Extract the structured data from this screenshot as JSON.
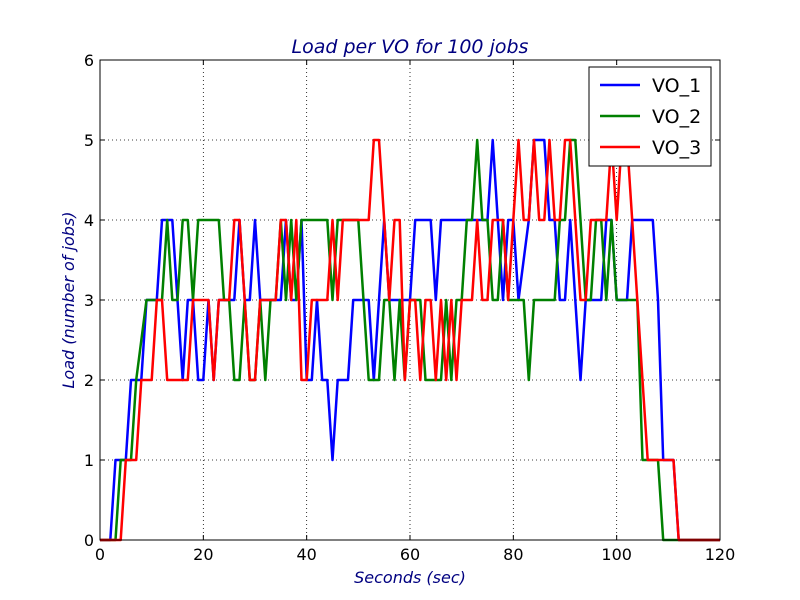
{
  "chart_data": {
    "type": "line",
    "title": "Load per VO for 100 jobs",
    "xlabel": "Seconds (sec)",
    "ylabel": "Load (number of jobs)",
    "xlim": [
      0,
      120
    ],
    "ylim": [
      0,
      6
    ],
    "xticks": [
      "0",
      "20",
      "40",
      "60",
      "80",
      "100",
      "120"
    ],
    "yticks": [
      "0",
      "1",
      "2",
      "3",
      "4",
      "5",
      "6"
    ],
    "grid": true,
    "legend_position": "top-right",
    "series": [
      {
        "name": "VO_1",
        "color": "#0000ff",
        "points": [
          [
            0,
            0
          ],
          [
            2,
            0
          ],
          [
            3,
            1
          ],
          [
            5,
            1
          ],
          [
            6,
            2
          ],
          [
            8,
            2
          ],
          [
            9,
            3
          ],
          [
            11,
            3
          ],
          [
            12,
            4
          ],
          [
            14,
            4
          ],
          [
            15,
            3
          ],
          [
            16,
            2
          ],
          [
            17,
            3
          ],
          [
            18,
            3
          ],
          [
            19,
            2
          ],
          [
            20,
            2
          ],
          [
            21,
            3
          ],
          [
            22,
            2
          ],
          [
            23,
            3
          ],
          [
            26,
            3
          ],
          [
            27,
            4
          ],
          [
            28,
            3
          ],
          [
            29,
            3
          ],
          [
            30,
            4
          ],
          [
            31,
            3
          ],
          [
            35,
            3
          ],
          [
            36,
            4
          ],
          [
            37,
            3
          ],
          [
            38,
            3
          ],
          [
            39,
            4
          ],
          [
            40,
            2
          ],
          [
            41,
            2
          ],
          [
            42,
            3
          ],
          [
            43,
            2
          ],
          [
            44,
            2
          ],
          [
            45,
            1
          ],
          [
            46,
            2
          ],
          [
            48,
            2
          ],
          [
            49,
            3
          ],
          [
            52,
            3
          ],
          [
            53,
            2
          ],
          [
            54,
            3
          ],
          [
            55,
            4
          ],
          [
            56,
            3
          ],
          [
            60,
            3
          ],
          [
            61,
            4
          ],
          [
            64,
            4
          ],
          [
            65,
            3
          ],
          [
            66,
            4
          ],
          [
            75,
            4
          ],
          [
            76,
            5
          ],
          [
            77,
            4
          ],
          [
            78,
            3
          ],
          [
            79,
            4
          ],
          [
            80,
            4
          ],
          [
            81,
            3
          ],
          [
            83,
            4
          ],
          [
            84,
            5
          ],
          [
            86,
            5
          ],
          [
            87,
            4
          ],
          [
            88,
            4
          ],
          [
            89,
            3
          ],
          [
            90,
            3
          ],
          [
            91,
            4
          ],
          [
            92,
            3
          ],
          [
            93,
            2
          ],
          [
            94,
            3
          ],
          [
            97,
            3
          ],
          [
            98,
            4
          ],
          [
            99,
            4
          ],
          [
            100,
            3
          ],
          [
            102,
            3
          ],
          [
            103,
            4
          ],
          [
            107,
            4
          ],
          [
            108,
            3
          ],
          [
            109,
            1
          ],
          [
            110,
            1
          ],
          [
            111,
            1
          ],
          [
            112,
            0
          ],
          [
            120,
            0
          ]
        ]
      },
      {
        "name": "VO_2",
        "color": "#008000",
        "points": [
          [
            0,
            0
          ],
          [
            3,
            0
          ],
          [
            4,
            1
          ],
          [
            6,
            1
          ],
          [
            7,
            2
          ],
          [
            9,
            3
          ],
          [
            12,
            3
          ],
          [
            13,
            4
          ],
          [
            14,
            3
          ],
          [
            15,
            3
          ],
          [
            16,
            4
          ],
          [
            17,
            4
          ],
          [
            18,
            3
          ],
          [
            19,
            4
          ],
          [
            23,
            4
          ],
          [
            24,
            3
          ],
          [
            25,
            3
          ],
          [
            26,
            2
          ],
          [
            27,
            2
          ],
          [
            28,
            3
          ],
          [
            29,
            2
          ],
          [
            30,
            2
          ],
          [
            31,
            3
          ],
          [
            32,
            2
          ],
          [
            33,
            3
          ],
          [
            34,
            3
          ],
          [
            35,
            4
          ],
          [
            36,
            3
          ],
          [
            37,
            4
          ],
          [
            38,
            3
          ],
          [
            39,
            4
          ],
          [
            44,
            4
          ],
          [
            45,
            3
          ],
          [
            46,
            4
          ],
          [
            50,
            4
          ],
          [
            51,
            3
          ],
          [
            52,
            2
          ],
          [
            54,
            2
          ],
          [
            55,
            3
          ],
          [
            56,
            3
          ],
          [
            57,
            2
          ],
          [
            58,
            3
          ],
          [
            59,
            2
          ],
          [
            60,
            3
          ],
          [
            62,
            3
          ],
          [
            63,
            2
          ],
          [
            66,
            2
          ],
          [
            67,
            3
          ],
          [
            68,
            2
          ],
          [
            69,
            3
          ],
          [
            70,
            3
          ],
          [
            71,
            4
          ],
          [
            72,
            4
          ],
          [
            73,
            5
          ],
          [
            74,
            4
          ],
          [
            75,
            4
          ],
          [
            76,
            3
          ],
          [
            77,
            3
          ],
          [
            78,
            4
          ],
          [
            79,
            3
          ],
          [
            82,
            3
          ],
          [
            83,
            2
          ],
          [
            84,
            3
          ],
          [
            88,
            3
          ],
          [
            89,
            4
          ],
          [
            90,
            4
          ],
          [
            91,
            5
          ],
          [
            92,
            5
          ],
          [
            93,
            4
          ],
          [
            94,
            3
          ],
          [
            95,
            3
          ],
          [
            96,
            4
          ],
          [
            97,
            4
          ],
          [
            98,
            3
          ],
          [
            99,
            4
          ],
          [
            100,
            3
          ],
          [
            104,
            3
          ],
          [
            105,
            1
          ],
          [
            107,
            1
          ],
          [
            108,
            1
          ],
          [
            109,
            0
          ],
          [
            120,
            0
          ]
        ]
      },
      {
        "name": "VO_3",
        "color": "#ff0000",
        "points": [
          [
            0,
            0
          ],
          [
            4,
            0
          ],
          [
            5,
            1
          ],
          [
            7,
            1
          ],
          [
            8,
            2
          ],
          [
            10,
            2
          ],
          [
            11,
            3
          ],
          [
            12,
            3
          ],
          [
            13,
            2
          ],
          [
            17,
            2
          ],
          [
            18,
            3
          ],
          [
            21,
            3
          ],
          [
            22,
            2
          ],
          [
            23,
            3
          ],
          [
            25,
            3
          ],
          [
            26,
            4
          ],
          [
            27,
            4
          ],
          [
            28,
            3
          ],
          [
            29,
            2
          ],
          [
            30,
            2
          ],
          [
            31,
            3
          ],
          [
            34,
            3
          ],
          [
            35,
            4
          ],
          [
            36,
            4
          ],
          [
            37,
            3
          ],
          [
            38,
            4
          ],
          [
            39,
            2
          ],
          [
            40,
            2
          ],
          [
            41,
            3
          ],
          [
            44,
            3
          ],
          [
            45,
            4
          ],
          [
            46,
            3
          ],
          [
            47,
            4
          ],
          [
            52,
            4
          ],
          [
            53,
            5
          ],
          [
            54,
            5
          ],
          [
            55,
            4
          ],
          [
            56,
            3
          ],
          [
            57,
            4
          ],
          [
            58,
            4
          ],
          [
            59,
            2
          ],
          [
            60,
            3
          ],
          [
            61,
            3
          ],
          [
            62,
            2
          ],
          [
            63,
            3
          ],
          [
            64,
            3
          ],
          [
            65,
            2
          ],
          [
            66,
            3
          ],
          [
            67,
            2
          ],
          [
            68,
            3
          ],
          [
            69,
            2
          ],
          [
            70,
            3
          ],
          [
            72,
            3
          ],
          [
            73,
            4
          ],
          [
            74,
            3
          ],
          [
            75,
            3
          ],
          [
            76,
            4
          ],
          [
            78,
            4
          ],
          [
            79,
            3
          ],
          [
            80,
            4
          ],
          [
            81,
            5
          ],
          [
            82,
            4
          ],
          [
            83,
            4
          ],
          [
            84,
            5
          ],
          [
            85,
            4
          ],
          [
            86,
            4
          ],
          [
            87,
            5
          ],
          [
            88,
            4
          ],
          [
            89,
            4
          ],
          [
            90,
            5
          ],
          [
            91,
            5
          ],
          [
            92,
            4
          ],
          [
            93,
            3
          ],
          [
            94,
            3
          ],
          [
            95,
            4
          ],
          [
            98,
            4
          ],
          [
            99,
            5
          ],
          [
            100,
            4
          ],
          [
            101,
            5
          ],
          [
            102,
            5
          ],
          [
            103,
            4
          ],
          [
            104,
            3
          ],
          [
            105,
            2
          ],
          [
            106,
            1
          ],
          [
            110,
            1
          ],
          [
            111,
            1
          ],
          [
            112,
            0
          ],
          [
            120,
            0
          ]
        ]
      }
    ]
  }
}
